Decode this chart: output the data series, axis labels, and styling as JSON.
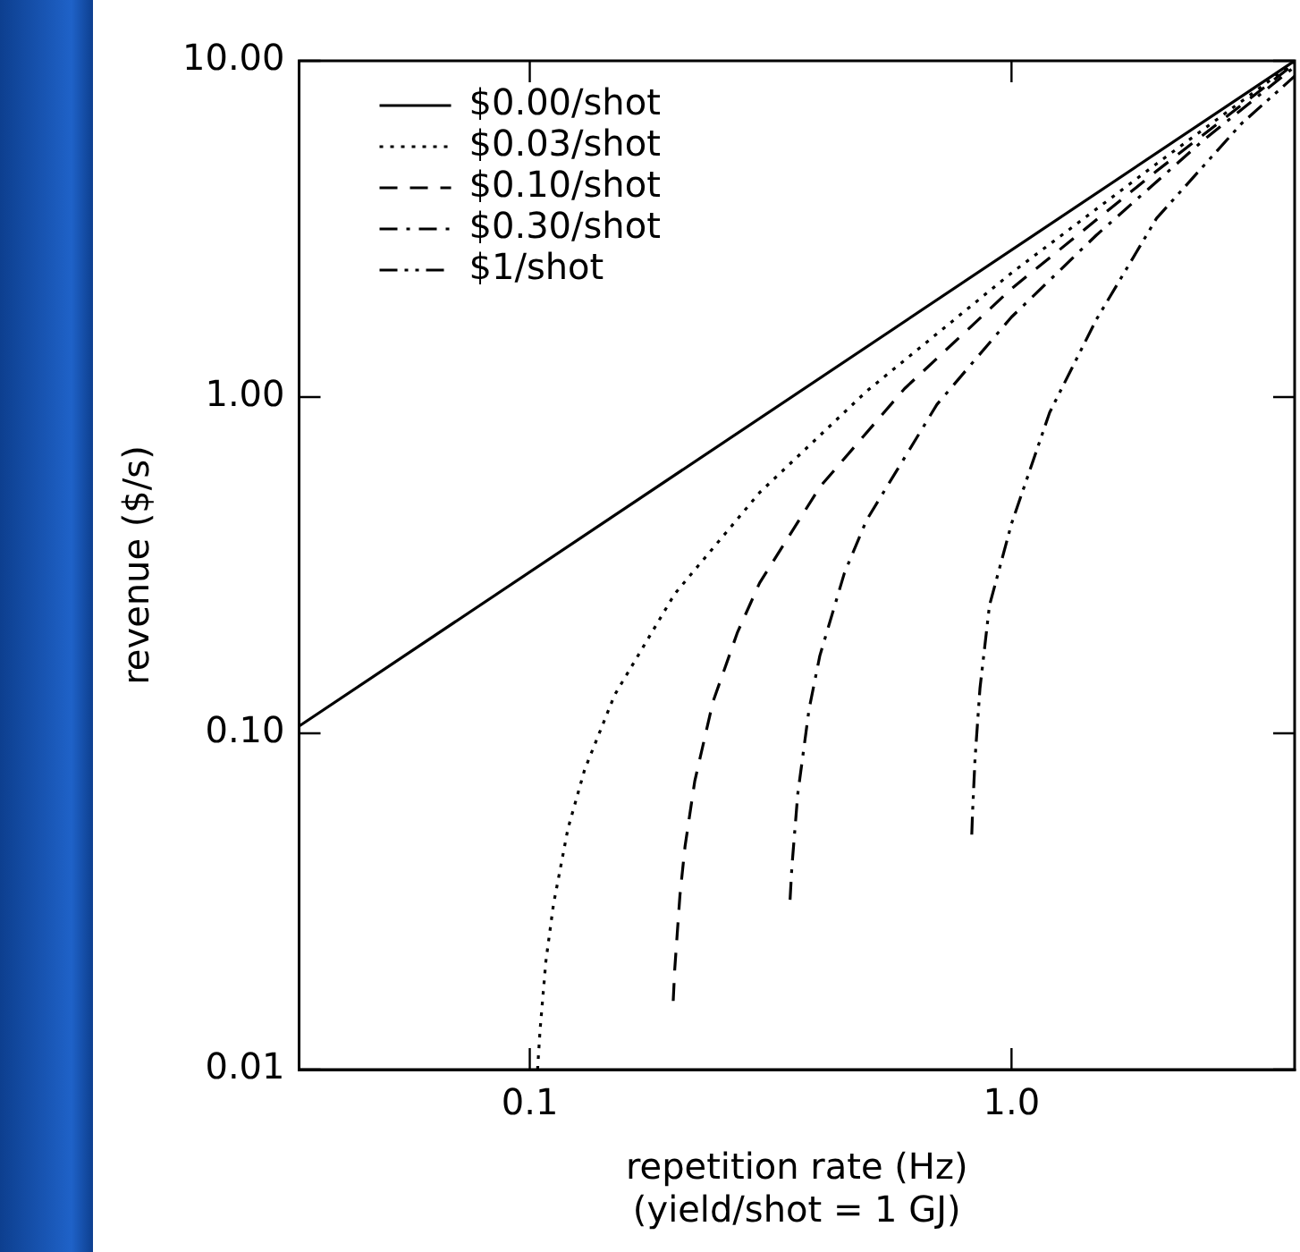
{
  "chart_data": {
    "type": "line",
    "xlabel": "repetition rate (Hz)\n(yield/shot = 1 GJ)",
    "ylabel": "revenue ($/s)",
    "log": "xy",
    "xlim": [
      0.0332,
      3.87
    ],
    "ylim": [
      0.01,
      10
    ],
    "xticks": [
      0.1,
      {
        "value": 1,
        "label": "1.0"
      }
    ],
    "yticks": [
      {
        "value": 0.01,
        "label": "0.01"
      },
      {
        "value": 0.1,
        "label": "0.10"
      },
      {
        "value": 1,
        "label": "1.00"
      },
      {
        "value": 10,
        "label": "10.00"
      }
    ],
    "grid": false,
    "legend": "top left",
    "marker": "none",
    "series": [
      {
        "name": "$0.00/shot",
        "color": "#000000",
        "line_style": "solid",
        "x": [
          0.0332,
          3.87
        ],
        "values": [
          0.105,
          10
        ]
      },
      {
        "name": "$0.03/shot",
        "color": "#000000",
        "line_style": "dotted",
        "x": [
          0.1038,
          0.105,
          0.108,
          0.112,
          0.12,
          0.13,
          0.15,
          0.2,
          0.3,
          0.5,
          1,
          2,
          3.87
        ],
        "values": [
          0.01,
          0.013,
          0.021,
          0.031,
          0.052,
          0.078,
          0.13,
          0.26,
          0.52,
          1.04,
          2.34,
          4.94,
          9.9
        ]
      },
      {
        "name": "$0.10/shot",
        "color": "#000000",
        "line_style": "dashed",
        "x": [
          0.1985,
          0.2,
          0.205,
          0.21,
          0.22,
          0.24,
          0.27,
          0.3,
          0.4,
          0.6,
          1,
          2,
          3.87
        ],
        "values": [
          0.016,
          0.02,
          0.033,
          0.046,
          0.072,
          0.124,
          0.2,
          0.28,
          0.54,
          1.06,
          2.1,
          4.7,
          9.8
        ]
      },
      {
        "name": "$0.30/shot",
        "color": "#000000",
        "line_style": "dashdot",
        "x": [
          0.347,
          0.35,
          0.36,
          0.38,
          0.4,
          0.45,
          0.5,
          0.7,
          1,
          1.5,
          2.5,
          3.87
        ],
        "values": [
          0.032,
          0.04,
          0.066,
          0.118,
          0.17,
          0.3,
          0.43,
          0.95,
          1.73,
          3.03,
          5.8,
          9.6
        ]
      },
      {
        "name": "$1/shot",
        "color": "#000000",
        "line_style": "dashdotdot",
        "x": [
          0.827,
          0.83,
          0.84,
          0.86,
          0.9,
          1,
          1.2,
          1.5,
          2,
          3,
          3.87
        ],
        "values": [
          0.05,
          0.058,
          0.084,
          0.136,
          0.24,
          0.42,
          0.9,
          1.7,
          3.4,
          6.5,
          9
        ]
      }
    ]
  }
}
